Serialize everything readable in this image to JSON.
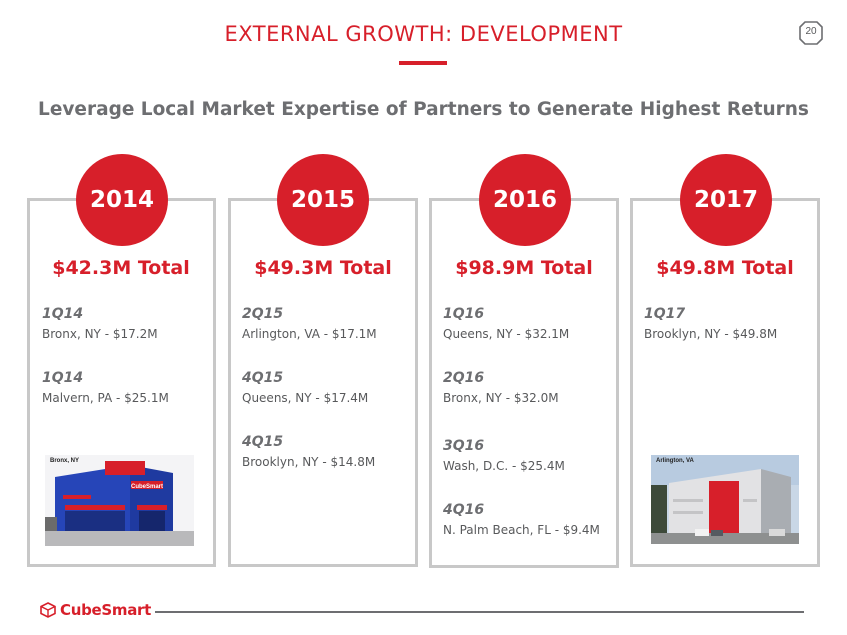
{
  "header": {
    "title": "EXTERNAL GROWTH: DEVELOPMENT",
    "page_number": "20",
    "subtitle": "Leverage Local Market Expertise of Partners to Generate Highest Returns"
  },
  "columns": [
    {
      "year": "2014",
      "total": "$42.3M Total",
      "entries": [
        {
          "quarter": "1Q14",
          "detail": "Bronx, NY - $17.2M"
        },
        {
          "quarter": "1Q14",
          "detail": "Malvern, PA - $25.1M"
        }
      ],
      "photo_caption": "Bronx, NY"
    },
    {
      "year": "2015",
      "total": "$49.3M Total",
      "entries": [
        {
          "quarter": "2Q15",
          "detail": "Arlington, VA - $17.1M"
        },
        {
          "quarter": "4Q15",
          "detail": "Queens, NY - $17.4M"
        },
        {
          "quarter": "4Q15",
          "detail": "Brooklyn, NY - $14.8M"
        }
      ]
    },
    {
      "year": "2016",
      "total": "$98.9M Total",
      "entries": [
        {
          "quarter": "1Q16",
          "detail": "Queens, NY - $32.1M"
        },
        {
          "quarter": "2Q16",
          "detail": "Bronx, NY - $32.0M"
        },
        {
          "quarter": "3Q16",
          "detail": "Wash, D.C. - $25.4M"
        },
        {
          "quarter": "4Q16",
          "detail": "N. Palm Beach, FL - $9.4M"
        }
      ]
    },
    {
      "year": "2017",
      "total": "$49.8M Total",
      "entries": [
        {
          "quarter": "1Q17",
          "detail": "Brooklyn, NY - $49.8M"
        }
      ],
      "photo_caption": "Arlington, VA"
    }
  ],
  "footer": {
    "brand": "CubeSmart",
    "photo_sign": "CubeSmart"
  },
  "colors": {
    "accent": "#d71f2a",
    "text": "#58595b",
    "card_border": "#c8c8c8"
  }
}
